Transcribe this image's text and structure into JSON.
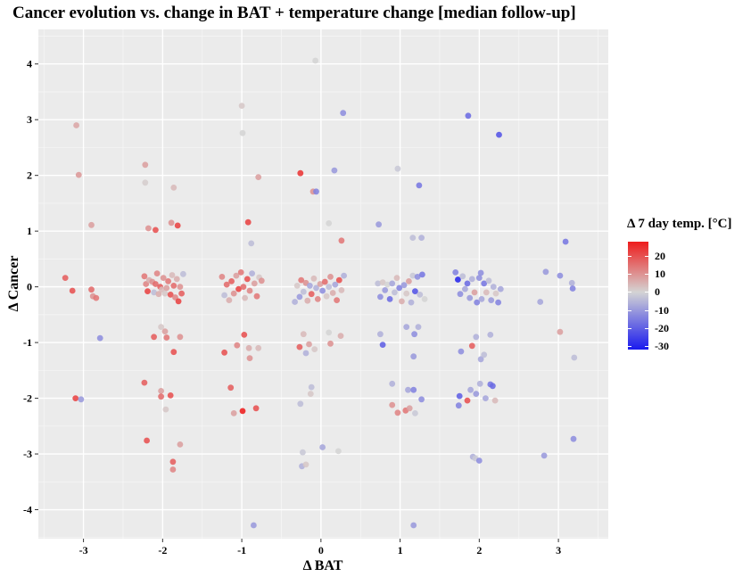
{
  "chart_data": {
    "type": "scatter",
    "title": "Cancer evolution vs. change in BAT + temperature change [median follow-up]",
    "xlabel": "Δ BAT",
    "ylabel": "Δ Cancer",
    "xlim": [
      -3.57,
      3.63
    ],
    "ylim": [
      -4.52,
      4.62
    ],
    "x_ticks": [
      -3,
      -2,
      -1,
      0,
      1,
      2,
      3
    ],
    "y_ticks": [
      -4,
      -3,
      -2,
      -1,
      0,
      1,
      2,
      3,
      4
    ],
    "grid": true,
    "legend": {
      "title": "Δ 7 day temp. [°C]",
      "position": "right",
      "ticks": [
        20,
        10,
        0,
        -10,
        -20,
        -30
      ],
      "range": [
        -32,
        28
      ],
      "colors": {
        "high": "#ee1c1c",
        "mid": "#d4d4d4",
        "low": "#1a1aee"
      }
    },
    "colors": {
      "panel": "#ebebeb",
      "grid_major": "#ffffff"
    },
    "points": [
      {
        "x": -3.23,
        "y": 0.16,
        "c": 18
      },
      {
        "x": -3.14,
        "y": -0.07,
        "c": 20
      },
      {
        "x": -3.09,
        "y": 2.9,
        "c": 7
      },
      {
        "x": -3.06,
        "y": 2.01,
        "c": 9
      },
      {
        "x": -3.1,
        "y": -2.0,
        "c": 22
      },
      {
        "x": -3.03,
        "y": -2.02,
        "c": -10
      },
      {
        "x": -2.9,
        "y": 1.11,
        "c": 8
      },
      {
        "x": -2.9,
        "y": -0.05,
        "c": 16
      },
      {
        "x": -2.88,
        "y": -0.17,
        "c": 10
      },
      {
        "x": -2.84,
        "y": -0.2,
        "c": 14
      },
      {
        "x": -2.79,
        "y": -0.92,
        "c": -12
      },
      {
        "x": -2.23,
        "y": 0.19,
        "c": 14
      },
      {
        "x": -2.21,
        "y": 0.05,
        "c": 12
      },
      {
        "x": -2.19,
        "y": -0.08,
        "c": 22
      },
      {
        "x": -2.17,
        "y": 0.12,
        "c": 6
      },
      {
        "x": -2.13,
        "y": 0.09,
        "c": 10
      },
      {
        "x": -2.11,
        "y": -0.1,
        "c": -4
      },
      {
        "x": -2.09,
        "y": 0.05,
        "c": 16
      },
      {
        "x": -2.07,
        "y": 0.24,
        "c": 12
      },
      {
        "x": -2.05,
        "y": -0.13,
        "c": 6
      },
      {
        "x": -2.03,
        "y": 0.0,
        "c": 18
      },
      {
        "x": -2.01,
        "y": -0.05,
        "c": 4
      },
      {
        "x": -1.99,
        "y": 0.16,
        "c": 10
      },
      {
        "x": -1.97,
        "y": -0.12,
        "c": 2
      },
      {
        "x": -1.95,
        "y": -0.02,
        "c": 8
      },
      {
        "x": -1.93,
        "y": 0.1,
        "c": 14
      },
      {
        "x": -1.9,
        "y": -0.14,
        "c": 20
      },
      {
        "x": -1.88,
        "y": 0.21,
        "c": 4
      },
      {
        "x": -1.86,
        "y": 0.02,
        "c": 16
      },
      {
        "x": -1.84,
        "y": -0.19,
        "c": 12
      },
      {
        "x": -1.82,
        "y": 0.14,
        "c": 6
      },
      {
        "x": -1.8,
        "y": -0.26,
        "c": 22
      },
      {
        "x": -1.78,
        "y": 0.0,
        "c": 10
      },
      {
        "x": -1.76,
        "y": -0.12,
        "c": 18
      },
      {
        "x": -1.74,
        "y": 0.23,
        "c": -4
      },
      {
        "x": -2.22,
        "y": 2.19,
        "c": 8
      },
      {
        "x": -2.22,
        "y": 1.87,
        "c": 1
      },
      {
        "x": -2.18,
        "y": 1.05,
        "c": 10
      },
      {
        "x": -2.09,
        "y": 1.02,
        "c": 20
      },
      {
        "x": -1.89,
        "y": 1.15,
        "c": 10
      },
      {
        "x": -1.86,
        "y": 1.78,
        "c": 4
      },
      {
        "x": -1.81,
        "y": 1.1,
        "c": 22
      },
      {
        "x": -2.11,
        "y": -0.9,
        "c": 18
      },
      {
        "x": -2.02,
        "y": -0.72,
        "c": 2
      },
      {
        "x": -1.97,
        "y": -0.8,
        "c": 8
      },
      {
        "x": -1.95,
        "y": -0.91,
        "c": 14
      },
      {
        "x": -1.86,
        "y": -1.17,
        "c": 20
      },
      {
        "x": -1.78,
        "y": -0.9,
        "c": 10
      },
      {
        "x": -2.23,
        "y": -1.72,
        "c": 18
      },
      {
        "x": -2.02,
        "y": -1.87,
        "c": 8
      },
      {
        "x": -2.02,
        "y": -1.97,
        "c": 16
      },
      {
        "x": -1.96,
        "y": -2.2,
        "c": 2
      },
      {
        "x": -1.9,
        "y": -1.95,
        "c": 20
      },
      {
        "x": -2.2,
        "y": -2.76,
        "c": 20
      },
      {
        "x": -1.87,
        "y": -3.14,
        "c": 18
      },
      {
        "x": -1.87,
        "y": -3.28,
        "c": 12
      },
      {
        "x": -1.78,
        "y": -2.83,
        "c": 8
      },
      {
        "x": -1.25,
        "y": 0.18,
        "c": 12
      },
      {
        "x": -1.22,
        "y": -0.15,
        "c": -4
      },
      {
        "x": -1.19,
        "y": 0.04,
        "c": 16
      },
      {
        "x": -1.16,
        "y": -0.24,
        "c": 6
      },
      {
        "x": -1.13,
        "y": 0.1,
        "c": 18
      },
      {
        "x": -1.1,
        "y": -0.12,
        "c": 10
      },
      {
        "x": -1.07,
        "y": 0.2,
        "c": 8
      },
      {
        "x": -1.04,
        "y": -0.04,
        "c": 22
      },
      {
        "x": -1.01,
        "y": 0.26,
        "c": 14
      },
      {
        "x": -0.98,
        "y": 0.0,
        "c": 16
      },
      {
        "x": -0.96,
        "y": -0.2,
        "c": 4
      },
      {
        "x": -0.93,
        "y": 0.14,
        "c": 20
      },
      {
        "x": -0.9,
        "y": -0.07,
        "c": 12
      },
      {
        "x": -0.87,
        "y": 0.24,
        "c": -6
      },
      {
        "x": -0.84,
        "y": 0.06,
        "c": 8
      },
      {
        "x": -0.81,
        "y": -0.17,
        "c": 14
      },
      {
        "x": -0.78,
        "y": 0.17,
        "c": 2
      },
      {
        "x": -0.75,
        "y": 0.11,
        "c": 10
      },
      {
        "x": -1.0,
        "y": 3.25,
        "c": 2
      },
      {
        "x": -0.99,
        "y": 2.76,
        "c": 0
      },
      {
        "x": -0.79,
        "y": 1.97,
        "c": 8
      },
      {
        "x": -0.92,
        "y": 1.16,
        "c": 22
      },
      {
        "x": -0.88,
        "y": 0.78,
        "c": -4
      },
      {
        "x": -1.22,
        "y": -1.18,
        "c": 20
      },
      {
        "x": -1.06,
        "y": -1.05,
        "c": 12
      },
      {
        "x": -0.97,
        "y": -0.86,
        "c": 20
      },
      {
        "x": -0.91,
        "y": -1.1,
        "c": 6
      },
      {
        "x": -0.9,
        "y": -1.28,
        "c": 10
      },
      {
        "x": -0.79,
        "y": -1.1,
        "c": 4
      },
      {
        "x": -1.14,
        "y": -1.81,
        "c": 18
      },
      {
        "x": -1.1,
        "y": -2.27,
        "c": 8
      },
      {
        "x": -0.99,
        "y": -2.23,
        "c": 28
      },
      {
        "x": -0.82,
        "y": -2.18,
        "c": 20
      },
      {
        "x": -0.85,
        "y": -4.28,
        "c": -10
      },
      {
        "x": -0.33,
        "y": -0.27,
        "c": -6
      },
      {
        "x": -0.3,
        "y": 0.02,
        "c": 2
      },
      {
        "x": -0.27,
        "y": -0.18,
        "c": -10
      },
      {
        "x": -0.25,
        "y": 0.12,
        "c": 14
      },
      {
        "x": -0.22,
        "y": -0.09,
        "c": -4
      },
      {
        "x": -0.19,
        "y": 0.07,
        "c": 10
      },
      {
        "x": -0.17,
        "y": -0.25,
        "c": 6
      },
      {
        "x": -0.14,
        "y": 0.02,
        "c": -8
      },
      {
        "x": -0.12,
        "y": -0.13,
        "c": 18
      },
      {
        "x": -0.09,
        "y": 0.15,
        "c": 4
      },
      {
        "x": -0.06,
        "y": -0.02,
        "c": -6
      },
      {
        "x": -0.04,
        "y": -0.22,
        "c": 12
      },
      {
        "x": -0.01,
        "y": 0.05,
        "c": 8
      },
      {
        "x": 0.02,
        "y": -0.07,
        "c": -12
      },
      {
        "x": 0.05,
        "y": 0.09,
        "c": 16
      },
      {
        "x": 0.07,
        "y": -0.17,
        "c": 2
      },
      {
        "x": 0.1,
        "y": 0.0,
        "c": -4
      },
      {
        "x": 0.12,
        "y": 0.18,
        "c": 10
      },
      {
        "x": 0.15,
        "y": -0.11,
        "c": 6
      },
      {
        "x": 0.18,
        "y": 0.04,
        "c": -8
      },
      {
        "x": 0.2,
        "y": -0.24,
        "c": 14
      },
      {
        "x": 0.23,
        "y": 0.12,
        "c": 20
      },
      {
        "x": 0.26,
        "y": -0.06,
        "c": 4
      },
      {
        "x": 0.29,
        "y": 0.2,
        "c": -6
      },
      {
        "x": -0.26,
        "y": 2.04,
        "c": 24
      },
      {
        "x": -0.1,
        "y": 1.71,
        "c": 10
      },
      {
        "x": -0.06,
        "y": 1.71,
        "c": -14
      },
      {
        "x": 0.17,
        "y": 2.09,
        "c": -10
      },
      {
        "x": 0.1,
        "y": 1.14,
        "c": 0
      },
      {
        "x": 0.26,
        "y": 0.83,
        "c": 14
      },
      {
        "x": -0.07,
        "y": 4.06,
        "c": 0
      },
      {
        "x": 0.28,
        "y": 3.12,
        "c": -12
      },
      {
        "x": -0.22,
        "y": -0.85,
        "c": 4
      },
      {
        "x": -0.19,
        "y": -1.19,
        "c": -6
      },
      {
        "x": -0.15,
        "y": -1.03,
        "c": 8
      },
      {
        "x": -0.08,
        "y": -1.12,
        "c": 2
      },
      {
        "x": 0.1,
        "y": -0.82,
        "c": 0
      },
      {
        "x": 0.12,
        "y": -1.02,
        "c": 10
      },
      {
        "x": 0.25,
        "y": -0.88,
        "c": 6
      },
      {
        "x": -0.27,
        "y": -1.08,
        "c": 18
      },
      {
        "x": -0.26,
        "y": -2.1,
        "c": -4
      },
      {
        "x": -0.13,
        "y": -1.92,
        "c": 2
      },
      {
        "x": -0.12,
        "y": -1.8,
        "c": -4
      },
      {
        "x": -0.24,
        "y": -3.22,
        "c": -6
      },
      {
        "x": -0.19,
        "y": -3.19,
        "c": 2
      },
      {
        "x": -0.23,
        "y": -2.97,
        "c": -2
      },
      {
        "x": 0.02,
        "y": -2.88,
        "c": -8
      },
      {
        "x": 0.22,
        "y": -2.95,
        "c": 0
      },
      {
        "x": 0.72,
        "y": 0.06,
        "c": -4
      },
      {
        "x": 0.75,
        "y": -0.18,
        "c": -12
      },
      {
        "x": 0.78,
        "y": 0.08,
        "c": 2
      },
      {
        "x": 0.81,
        "y": -0.06,
        "c": -10
      },
      {
        "x": 0.84,
        "y": 0.04,
        "c": 0
      },
      {
        "x": 0.87,
        "y": -0.22,
        "c": -18
      },
      {
        "x": 0.9,
        "y": 0.06,
        "c": -8
      },
      {
        "x": 0.93,
        "y": -0.1,
        "c": -4
      },
      {
        "x": 0.96,
        "y": 0.16,
        "c": 4
      },
      {
        "x": 0.99,
        "y": -0.02,
        "c": -14
      },
      {
        "x": 1.02,
        "y": -0.26,
        "c": 6
      },
      {
        "x": 1.05,
        "y": 0.03,
        "c": -10
      },
      {
        "x": 1.08,
        "y": -0.12,
        "c": 2
      },
      {
        "x": 1.11,
        "y": 0.1,
        "c": 8
      },
      {
        "x": 1.14,
        "y": -0.28,
        "c": -6
      },
      {
        "x": 1.16,
        "y": 0.2,
        "c": -2
      },
      {
        "x": 1.19,
        "y": -0.08,
        "c": -22
      },
      {
        "x": 1.22,
        "y": 0.18,
        "c": -12
      },
      {
        "x": 1.25,
        "y": -0.14,
        "c": -4
      },
      {
        "x": 1.28,
        "y": 0.22,
        "c": -16
      },
      {
        "x": 1.31,
        "y": -0.22,
        "c": 0
      },
      {
        "x": 0.73,
        "y": 1.12,
        "c": -10
      },
      {
        "x": 0.97,
        "y": 2.12,
        "c": -2
      },
      {
        "x": 1.16,
        "y": 0.88,
        "c": -4
      },
      {
        "x": 1.27,
        "y": 0.88,
        "c": -6
      },
      {
        "x": 1.24,
        "y": 1.82,
        "c": -16
      },
      {
        "x": 0.75,
        "y": -0.85,
        "c": -6
      },
      {
        "x": 0.78,
        "y": -1.04,
        "c": -20
      },
      {
        "x": 1.08,
        "y": -0.72,
        "c": -8
      },
      {
        "x": 1.18,
        "y": -0.85,
        "c": -12
      },
      {
        "x": 1.17,
        "y": -1.25,
        "c": -10
      },
      {
        "x": 1.23,
        "y": -0.72,
        "c": -6
      },
      {
        "x": 0.9,
        "y": -2.12,
        "c": 10
      },
      {
        "x": 0.9,
        "y": -1.74,
        "c": -6
      },
      {
        "x": 0.97,
        "y": -2.26,
        "c": 12
      },
      {
        "x": 1.07,
        "y": -2.22,
        "c": 14
      },
      {
        "x": 1.1,
        "y": -1.85,
        "c": -8
      },
      {
        "x": 1.12,
        "y": -2.18,
        "c": 8
      },
      {
        "x": 1.17,
        "y": -1.85,
        "c": -14
      },
      {
        "x": 1.19,
        "y": -2.27,
        "c": -2
      },
      {
        "x": 1.27,
        "y": -2.02,
        "c": -12
      },
      {
        "x": 1.17,
        "y": -4.28,
        "c": -10
      },
      {
        "x": 1.7,
        "y": 0.26,
        "c": -14
      },
      {
        "x": 1.73,
        "y": 0.13,
        "c": -30
      },
      {
        "x": 1.76,
        "y": -0.13,
        "c": -12
      },
      {
        "x": 1.79,
        "y": 0.19,
        "c": -4
      },
      {
        "x": 1.82,
        "y": -0.04,
        "c": -8
      },
      {
        "x": 1.85,
        "y": 0.06,
        "c": -18
      },
      {
        "x": 1.88,
        "y": -0.2,
        "c": -10
      },
      {
        "x": 1.91,
        "y": 0.14,
        "c": -6
      },
      {
        "x": 1.94,
        "y": -0.1,
        "c": 8
      },
      {
        "x": 1.97,
        "y": -0.28,
        "c": -14
      },
      {
        "x": 2.0,
        "y": 0.16,
        "c": -12
      },
      {
        "x": 2.03,
        "y": -0.22,
        "c": -8
      },
      {
        "x": 2.06,
        "y": 0.06,
        "c": -16
      },
      {
        "x": 2.09,
        "y": -0.1,
        "c": 4
      },
      {
        "x": 2.12,
        "y": 0.11,
        "c": -4
      },
      {
        "x": 2.15,
        "y": -0.24,
        "c": -10
      },
      {
        "x": 2.18,
        "y": 0.0,
        "c": -6
      },
      {
        "x": 2.21,
        "y": -0.12,
        "c": 2
      },
      {
        "x": 2.24,
        "y": -0.28,
        "c": -14
      },
      {
        "x": 2.27,
        "y": -0.04,
        "c": -8
      },
      {
        "x": 2.02,
        "y": 0.25,
        "c": -12
      },
      {
        "x": 1.86,
        "y": 3.07,
        "c": -18
      },
      {
        "x": 2.25,
        "y": 2.73,
        "c": -22
      },
      {
        "x": 1.77,
        "y": -1.16,
        "c": -12
      },
      {
        "x": 1.91,
        "y": -1.06,
        "c": 18
      },
      {
        "x": 1.96,
        "y": -0.9,
        "c": -6
      },
      {
        "x": 2.02,
        "y": -1.3,
        "c": -8
      },
      {
        "x": 2.06,
        "y": -1.22,
        "c": -4
      },
      {
        "x": 2.14,
        "y": -0.86,
        "c": -6
      },
      {
        "x": 1.75,
        "y": -1.96,
        "c": -20
      },
      {
        "x": 1.74,
        "y": -2.13,
        "c": -14
      },
      {
        "x": 1.85,
        "y": -2.04,
        "c": 20
      },
      {
        "x": 1.89,
        "y": -1.85,
        "c": -8
      },
      {
        "x": 1.96,
        "y": -1.92,
        "c": -10
      },
      {
        "x": 2.01,
        "y": -1.74,
        "c": -6
      },
      {
        "x": 2.08,
        "y": -2.0,
        "c": -8
      },
      {
        "x": 2.14,
        "y": -1.75,
        "c": -16
      },
      {
        "x": 2.17,
        "y": -1.78,
        "c": -18
      },
      {
        "x": 2.2,
        "y": -2.04,
        "c": 4
      },
      {
        "x": 1.92,
        "y": -3.05,
        "c": -6
      },
      {
        "x": 1.95,
        "y": -3.08,
        "c": -2
      },
      {
        "x": 2.0,
        "y": -3.12,
        "c": -12
      },
      {
        "x": 2.77,
        "y": -0.27,
        "c": -8
      },
      {
        "x": 2.84,
        "y": 0.27,
        "c": -10
      },
      {
        "x": 3.02,
        "y": 0.2,
        "c": -12
      },
      {
        "x": 3.09,
        "y": 0.81,
        "c": -16
      },
      {
        "x": 3.17,
        "y": 0.07,
        "c": -6
      },
      {
        "x": 3.18,
        "y": -0.03,
        "c": -14
      },
      {
        "x": 3.02,
        "y": -0.81,
        "c": 8
      },
      {
        "x": 3.2,
        "y": -1.27,
        "c": -4
      },
      {
        "x": 2.82,
        "y": -3.03,
        "c": -10
      },
      {
        "x": 3.19,
        "y": -2.73,
        "c": -12
      }
    ]
  }
}
